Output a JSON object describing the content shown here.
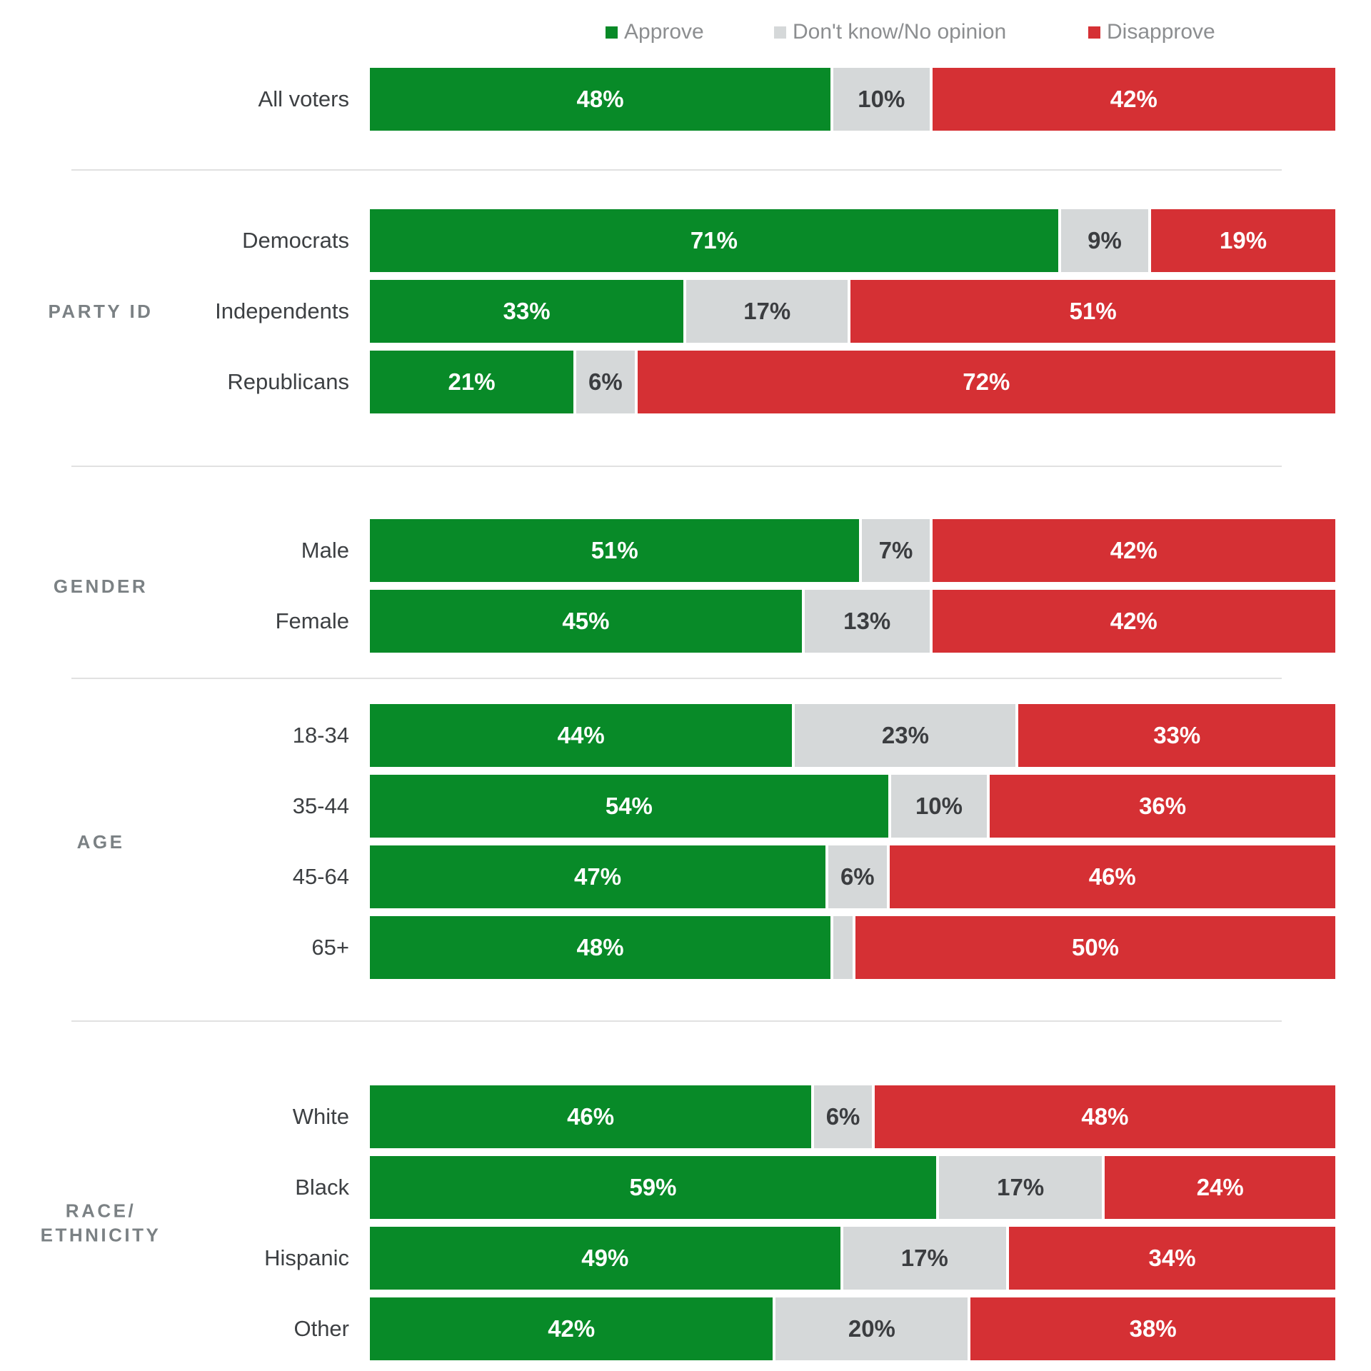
{
  "colors": {
    "approve": "#088a28",
    "no_opinion": "#d5d8d9",
    "disapprove": "#d53034",
    "label_on_color": "#ffffff",
    "label_on_gray": "#3b3d40",
    "row_label": "#3d4043",
    "section_label": "#7b8184",
    "legend_text": "#8c8e90",
    "divider": "#e1e1e1",
    "background": "#ffffff"
  },
  "legend": {
    "items": [
      {
        "label": "Approve",
        "color_key": "approve"
      },
      {
        "label": "Don't know/No opinion",
        "color_key": "no_opinion"
      },
      {
        "label": "Disapprove",
        "color_key": "disapprove"
      }
    ]
  },
  "chart_data": {
    "type": "bar",
    "variant": "horizontal-stacked-100",
    "value_unit": "%",
    "xlim": [
      0,
      100
    ],
    "grid": false,
    "legend_position": "top",
    "series_names": [
      "Approve",
      "Don't know/No opinion",
      "Disapprove"
    ],
    "series_colors": [
      "#088a28",
      "#d5d8d9",
      "#d53034"
    ],
    "groups": [
      {
        "section_lines": [],
        "rows": [
          {
            "label": "All voters",
            "values": [
              48,
              10,
              42
            ],
            "value_labels": [
              "48%",
              "10%",
              "42%"
            ]
          }
        ]
      },
      {
        "section_lines": [
          "PARTY ID"
        ],
        "rows": [
          {
            "label": "Democrats",
            "values": [
              71,
              9,
              19
            ],
            "value_labels": [
              "71%",
              "9%",
              "19%"
            ]
          },
          {
            "label": "Independents",
            "values": [
              33,
              17,
              51
            ],
            "value_labels": [
              "33%",
              "17%",
              "51%"
            ]
          },
          {
            "label": "Republicans",
            "values": [
              21,
              6,
              72
            ],
            "value_labels": [
              "21%",
              "6%",
              "72%"
            ]
          }
        ]
      },
      {
        "section_lines": [
          "GENDER"
        ],
        "rows": [
          {
            "label": "Male",
            "values": [
              51,
              7,
              42
            ],
            "value_labels": [
              "51%",
              "7%",
              "42%"
            ]
          },
          {
            "label": "Female",
            "values": [
              45,
              13,
              42
            ],
            "value_labels": [
              "45%",
              "13%",
              "42%"
            ]
          }
        ]
      },
      {
        "section_lines": [
          "AGE"
        ],
        "rows": [
          {
            "label": "18-34",
            "values": [
              44,
              23,
              33
            ],
            "value_labels": [
              "44%",
              "23%",
              "33%"
            ]
          },
          {
            "label": "35-44",
            "values": [
              54,
              10,
              36
            ],
            "value_labels": [
              "54%",
              "10%",
              "36%"
            ]
          },
          {
            "label": "45-64",
            "values": [
              47,
              6,
              46
            ],
            "value_labels": [
              "47%",
              "6%",
              "46%"
            ]
          },
          {
            "label": "65+",
            "values": [
              48,
              2,
              50
            ],
            "value_labels": [
              "48%",
              "",
              "50%"
            ]
          }
        ]
      },
      {
        "section_lines": [
          "RACE/",
          "ETHNICITY"
        ],
        "rows": [
          {
            "label": "White",
            "values": [
              46,
              6,
              48
            ],
            "value_labels": [
              "46%",
              "6%",
              "48%"
            ]
          },
          {
            "label": "Black",
            "values": [
              59,
              17,
              24
            ],
            "value_labels": [
              "59%",
              "17%",
              "24%"
            ]
          },
          {
            "label": "Hispanic",
            "values": [
              49,
              17,
              34
            ],
            "value_labels": [
              "49%",
              "17%",
              "34%"
            ]
          },
          {
            "label": "Other",
            "values": [
              42,
              20,
              38
            ],
            "value_labels": [
              "42%",
              "20%",
              "38%"
            ]
          }
        ]
      }
    ]
  }
}
